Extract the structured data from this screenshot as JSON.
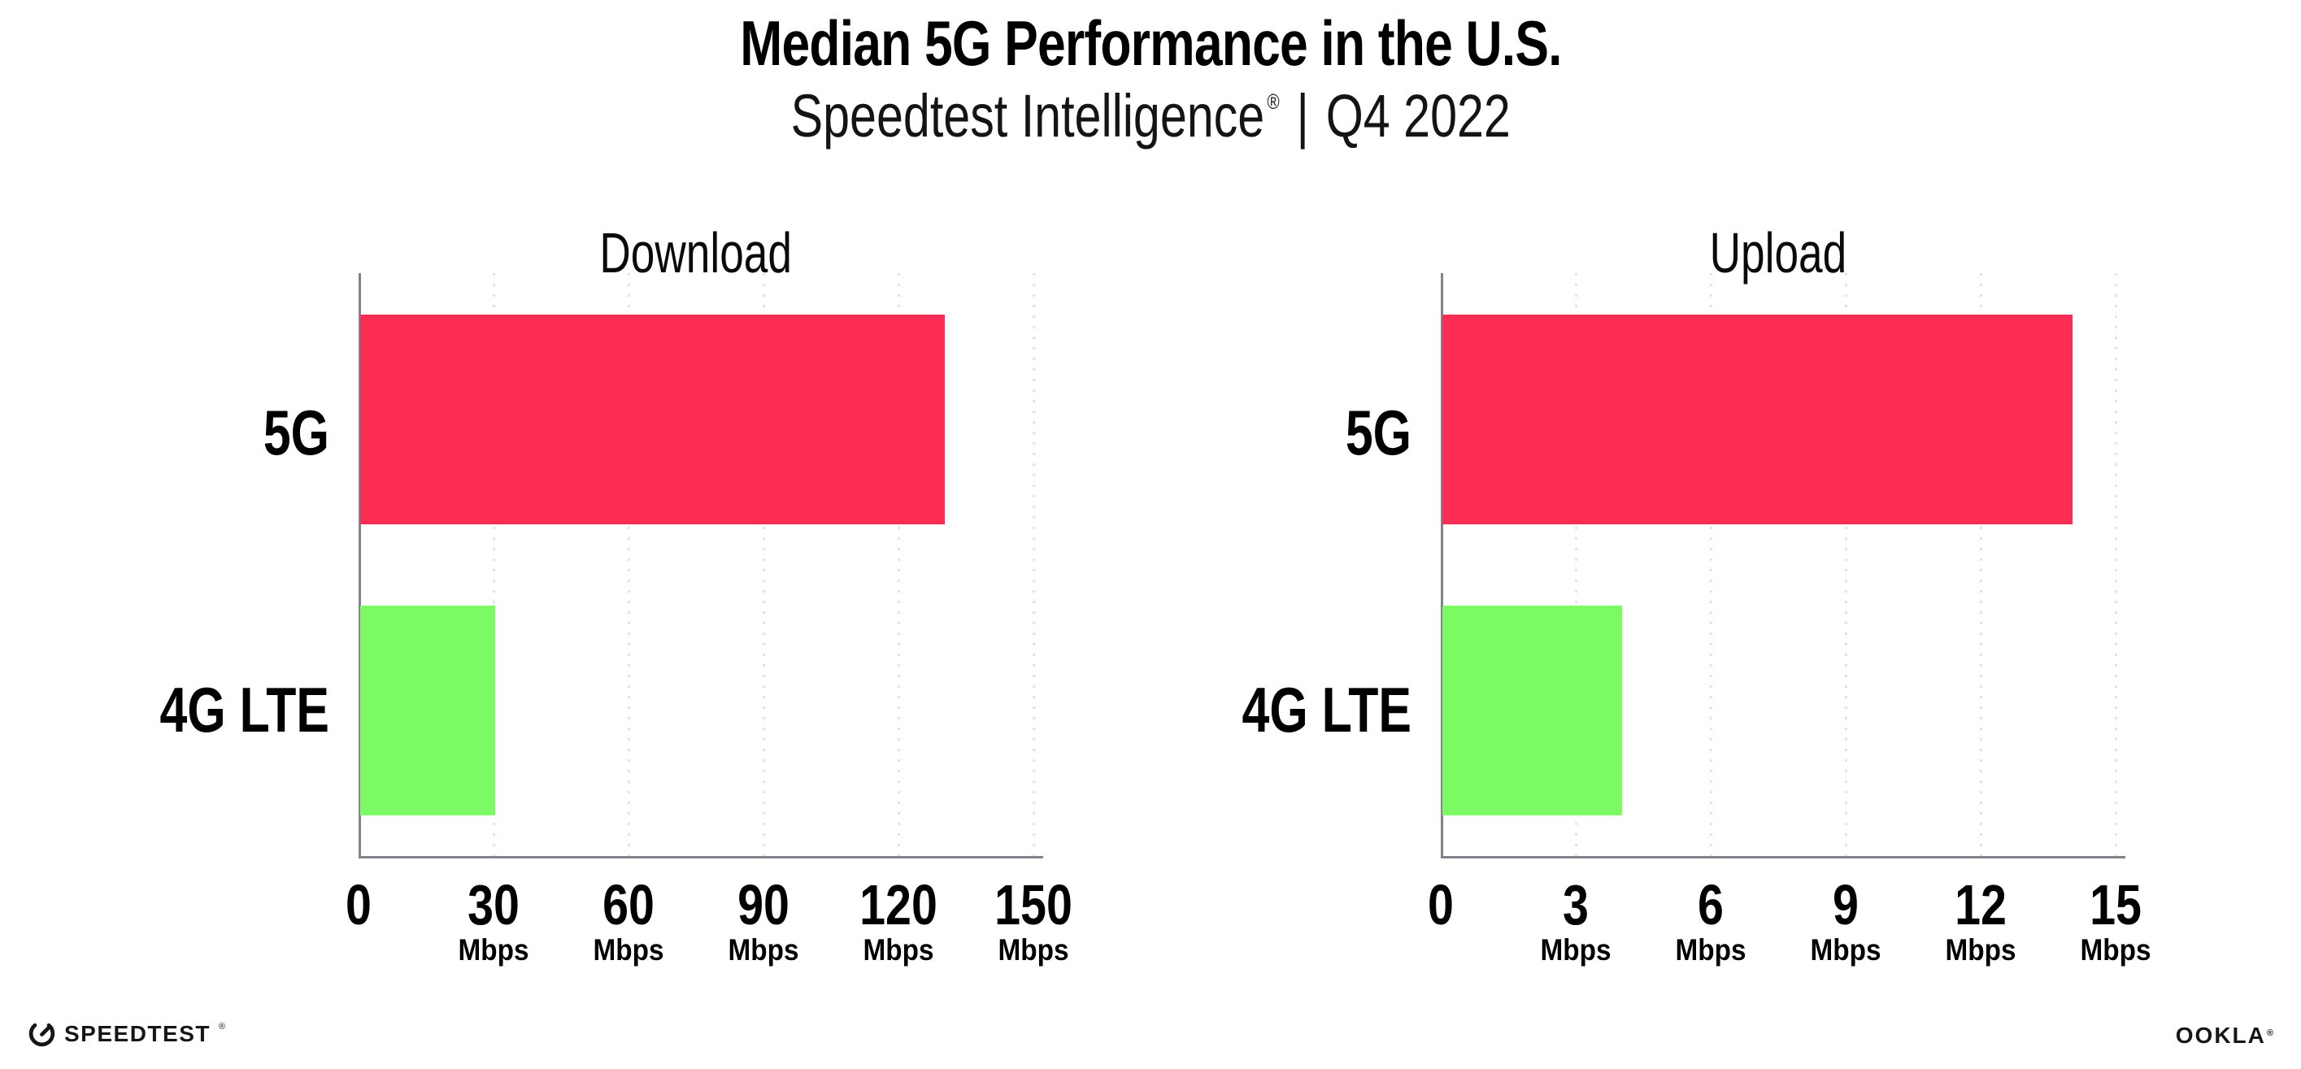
{
  "header": {
    "title": "Median 5G Performance in the U.S.",
    "subtitle": {
      "brand": "Speedtest Intelligence",
      "registered": "®",
      "separator": "|",
      "period": "Q4 2022"
    }
  },
  "footer": {
    "speedtest_label": "SPEEDTEST",
    "speedtest_registered": "®",
    "ookla_label": "OOKLA",
    "ookla_registered": "®"
  },
  "icons": {
    "speedtest_logo": "speedtest-gauge-icon"
  },
  "colors": {
    "bar_5g": "#FC2D55",
    "bar_4g_lte": "#7CFA63",
    "axis": "#82828A",
    "gridline": "#E3E3EE",
    "text": "#000000",
    "background": "#FFFFFF"
  },
  "chart_data": [
    {
      "type": "bar",
      "orientation": "horizontal",
      "title": "Download",
      "categories": [
        "5G",
        "4G LTE"
      ],
      "values": [
        130,
        30
      ],
      "unit": "Mbps",
      "xlim": [
        0,
        150
      ],
      "xticks": [
        0,
        30,
        60,
        90,
        120,
        150
      ],
      "tick_unit": "Mbps",
      "tick_unit_note": "Mbps shown under every tick except 0",
      "bar_colors": [
        "#FC2D55",
        "#7CFA63"
      ],
      "grid": "dotted vertical gridlines at each labeled tick",
      "legend": "none"
    },
    {
      "type": "bar",
      "orientation": "horizontal",
      "title": "Upload",
      "categories": [
        "5G",
        "4G LTE"
      ],
      "values": [
        14,
        4
      ],
      "unit": "Mbps",
      "xlim": [
        0,
        15
      ],
      "xticks": [
        0,
        3,
        6,
        9,
        12,
        15
      ],
      "tick_unit": "Mbps",
      "tick_unit_note": "Mbps shown under every tick except 0",
      "bar_colors": [
        "#FC2D55",
        "#7CFA63"
      ],
      "grid": "dotted vertical gridlines at each labeled tick",
      "legend": "none"
    }
  ]
}
